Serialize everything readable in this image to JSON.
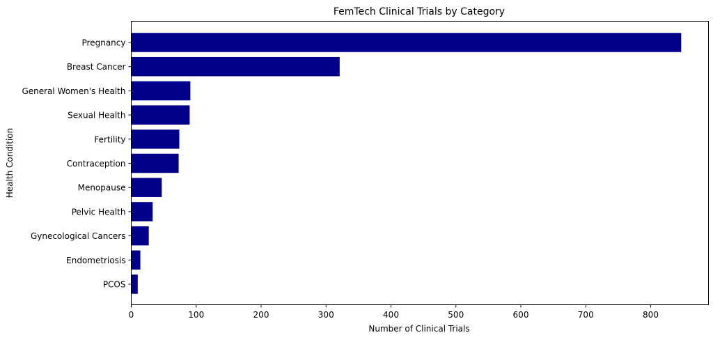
{
  "chart_data": {
    "type": "bar",
    "orientation": "horizontal",
    "title": "FemTech Clinical Trials  by Category",
    "xlabel": "Number of Clinical Trials",
    "ylabel": "Health Condition",
    "categories": [
      "Pregnancy",
      "Breast Cancer",
      "General Women's Health",
      "Sexual Health",
      "Fertility",
      "Contraception",
      "Menopause",
      "Pelvic Health",
      "Gynecological Cancers",
      "Endometriosis",
      "PCOS"
    ],
    "values": [
      847,
      321,
      91,
      90,
      74,
      73,
      47,
      33,
      27,
      14,
      10
    ],
    "xlim": [
      0,
      889
    ],
    "xticks": [
      0,
      100,
      200,
      300,
      400,
      500,
      600,
      700,
      800
    ],
    "grid": false,
    "bar_color": "#00008b"
  }
}
